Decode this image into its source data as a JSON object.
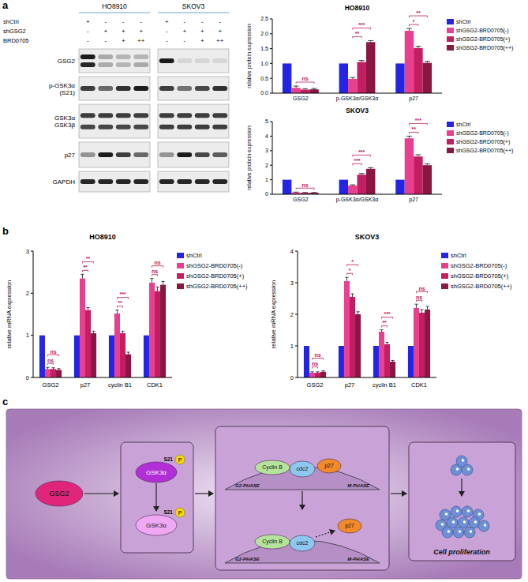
{
  "panel_labels": [
    "a",
    "b",
    "c"
  ],
  "blot_treatments": [
    {
      "label": "shCtrl",
      "marks": [
        "+",
        "-",
        "-",
        "-"
      ]
    },
    {
      "label": "shGSG2",
      "marks": [
        "-",
        "+",
        "+",
        "+"
      ]
    },
    {
      "label": "BRD0705",
      "marks": [
        "-",
        "-",
        "+",
        "++"
      ]
    }
  ],
  "blot_rows": [
    "GSG2",
    "p-GSK3α (S21)",
    "GSK3α GSK3β",
    "p27",
    "GAPDH"
  ],
  "blots": [
    {
      "title": "HO8910",
      "bands": [
        [
          [
            0.95,
            0.3,
            0.25,
            0.25
          ],
          [
            0.9,
            0.3,
            0.25,
            0.3
          ]
        ],
        [
          [
            0.8,
            0.6,
            0.85,
            0.95
          ]
        ],
        [
          [
            0.8,
            0.8,
            0.8,
            0.8
          ],
          [
            0.75,
            0.75,
            0.75,
            0.75
          ]
        ],
        [
          [
            0.4,
            0.95,
            0.8,
            0.6
          ]
        ],
        [
          [
            0.9,
            0.9,
            0.9,
            0.9
          ]
        ]
      ]
    },
    {
      "title": "SKOV3",
      "bands": [
        [
          [
            0.95,
            0.1,
            0.1,
            0.1
          ]
        ],
        [
          [
            0.8,
            0.55,
            0.75,
            0.85
          ]
        ],
        [
          [
            0.8,
            0.8,
            0.8,
            0.8
          ],
          [
            0.8,
            0.8,
            0.8,
            0.8
          ]
        ],
        [
          [
            0.4,
            0.95,
            0.75,
            0.65
          ]
        ],
        [
          [
            0.9,
            0.9,
            0.9,
            0.9
          ]
        ]
      ]
    }
  ],
  "chart_data": [
    {
      "type": "bar",
      "title": "HO8910",
      "ylabel": "relative protein expression",
      "categories": [
        "GSG2",
        "p-GSK3α/GSK3α",
        "p27"
      ],
      "series": [
        {
          "name": "shCtrl",
          "color": "#2424e6",
          "values": [
            1,
            1,
            1
          ]
        },
        {
          "name": "shGSG2-BRD0705(-)",
          "color": "#e8408f",
          "values": [
            0.18,
            0.48,
            2.1
          ],
          "errors": [
            0.06,
            0.05,
            0.08
          ]
        },
        {
          "name": "shGSG2-BRD0705(+)",
          "color": "#c41e62",
          "values": [
            0.12,
            1.05,
            1.52
          ],
          "errors": [
            0.03,
            0.05,
            0.06
          ]
        },
        {
          "name": "shGSG2-BRD0705(++)",
          "color": "#8a1644",
          "values": [
            0.13,
            1.72,
            1.02
          ],
          "errors": [
            0.03,
            0.05,
            0.05
          ]
        }
      ],
      "ylim": [
        0,
        2.5
      ],
      "yticks": [
        {
          "value": 0,
          "label": "0.0"
        },
        0.5,
        {
          "value": 1,
          "label": "1.0"
        },
        1.5,
        {
          "value": 2,
          "label": "2.0"
        },
        2.5
      ],
      "grid": false,
      "legend": "right",
      "annotations": [
        {
          "category": "GSG2",
          "from": "shGSG2-BRD0705(-)",
          "to": "shGSG2-BRD0705(++)",
          "text": "ns"
        },
        {
          "category": "p-GSK3α/GSK3α",
          "from": "shGSG2-BRD0705(-)",
          "to": "shGSG2-BRD0705(+)",
          "text": "**"
        },
        {
          "category": "p-GSK3α/GSK3α",
          "from": "shGSG2-BRD0705(-)",
          "to": "shGSG2-BRD0705(++)",
          "text": "***"
        },
        {
          "category": "p27",
          "from": "shGSG2-BRD0705(-)",
          "to": "shGSG2-BRD0705(+)",
          "text": "*"
        },
        {
          "category": "p27",
          "from": "shGSG2-BRD0705(-)",
          "to": "shGSG2-BRD0705(++)",
          "text": "**"
        }
      ]
    },
    {
      "type": "bar",
      "title": "SKOV3",
      "ylabel": "relative protein expression",
      "categories": [
        "GSG2",
        "p-GSK3α/GSK3α",
        "p27"
      ],
      "series": [
        {
          "name": "shCtrl",
          "color": "#2424e6",
          "values": [
            1,
            1,
            1
          ]
        },
        {
          "name": "shGSG2-BRD0705(-)",
          "color": "#e8408f",
          "values": [
            0.12,
            0.6,
            3.85
          ],
          "errors": [
            0.03,
            0.05,
            0.15
          ]
        },
        {
          "name": "shGSG2-BRD0705(+)",
          "color": "#c41e62",
          "values": [
            0.1,
            1.35,
            2.6
          ],
          "errors": [
            0.02,
            0.08,
            0.12
          ]
        },
        {
          "name": "shGSG2-BRD0705(++)",
          "color": "#8a1644",
          "values": [
            0.1,
            1.75,
            2.0
          ],
          "errors": [
            0.02,
            0.08,
            0.1
          ]
        }
      ],
      "ylim": [
        0,
        5
      ],
      "yticks": [
        0,
        1,
        2,
        3,
        4,
        5
      ],
      "grid": false,
      "legend": "right",
      "annotations": [
        {
          "category": "GSG2",
          "from": "shGSG2-BRD0705(-)",
          "to": "shGSG2-BRD0705(++)",
          "text": "ns"
        },
        {
          "category": "p-GSK3α/GSK3α",
          "from": "shGSG2-BRD0705(-)",
          "to": "shGSG2-BRD0705(+)",
          "text": "***"
        },
        {
          "category": "p-GSK3α/GSK3α",
          "from": "shGSG2-BRD0705(-)",
          "to": "shGSG2-BRD0705(++)",
          "text": "***"
        },
        {
          "category": "p27",
          "from": "shGSG2-BRD0705(-)",
          "to": "shGSG2-BRD0705(+)",
          "text": "**"
        },
        {
          "category": "p27",
          "from": "shGSG2-BRD0705(-)",
          "to": "shGSG2-BRD0705(++)",
          "text": "***"
        }
      ]
    },
    {
      "type": "bar",
      "title": "HO8910",
      "ylabel": "relative mRNA expression",
      "categories": [
        "GSG2",
        "p27",
        "cyclin B1",
        "CDK1"
      ],
      "series": [
        {
          "name": "shCtrl",
          "color": "#2424e6",
          "values": [
            1,
            1,
            1,
            1
          ]
        },
        {
          "name": "shGSG2-BRD0705(-)",
          "color": "#e8408f",
          "values": [
            0.2,
            2.35,
            1.52,
            2.25
          ],
          "errors": [
            0.04,
            0.1,
            0.08,
            0.1
          ]
        },
        {
          "name": "shGSG2-BRD0705(+)",
          "color": "#c41e62",
          "values": [
            0.2,
            1.6,
            1.05,
            2.05
          ],
          "errors": [
            0.03,
            0.06,
            0.05,
            0.1
          ]
        },
        {
          "name": "shGSG2-BRD0705(++)",
          "color": "#8a1644",
          "values": [
            0.18,
            1.05,
            0.55,
            2.2
          ],
          "errors": [
            0.03,
            0.05,
            0.05,
            0.08
          ]
        }
      ],
      "ylim": [
        0,
        3
      ],
      "yticks": [
        0,
        1,
        2,
        3
      ],
      "grid": false,
      "legend": "right",
      "annotations": [
        {
          "category": "GSG2",
          "from": "shGSG2-BRD0705(-)",
          "to": "shGSG2-BRD0705(+)",
          "text": "ns"
        },
        {
          "category": "GSG2",
          "from": "shGSG2-BRD0705(-)",
          "to": "shGSG2-BRD0705(++)",
          "text": "ns"
        },
        {
          "category": "p27",
          "from": "shGSG2-BRD0705(-)",
          "to": "shGSG2-BRD0705(+)",
          "text": "**"
        },
        {
          "category": "p27",
          "from": "shGSG2-BRD0705(-)",
          "to": "shGSG2-BRD0705(++)",
          "text": "**"
        },
        {
          "category": "cyclin B1",
          "from": "shGSG2-BRD0705(-)",
          "to": "shGSG2-BRD0705(+)",
          "text": "**"
        },
        {
          "category": "cyclin B1",
          "from": "shGSG2-BRD0705(-)",
          "to": "shGSG2-BRD0705(++)",
          "text": "***"
        },
        {
          "category": "CDK1",
          "from": "shGSG2-BRD0705(-)",
          "to": "shGSG2-BRD0705(+)",
          "text": "ns"
        },
        {
          "category": "CDK1",
          "from": "shGSG2-BRD0705(-)",
          "to": "shGSG2-BRD0705(++)",
          "text": "ns"
        }
      ]
    },
    {
      "type": "bar",
      "title": "SKOV3",
      "ylabel": "relative mRNA expression",
      "categories": [
        "GSG2",
        "p27",
        "cyclin B1",
        "CDK1"
      ],
      "series": [
        {
          "name": "shCtrl",
          "color": "#2424e6",
          "values": [
            1,
            1,
            1,
            1
          ]
        },
        {
          "name": "shGSG2-BRD0705(-)",
          "color": "#e8408f",
          "values": [
            0.15,
            3.05,
            1.45,
            2.2
          ],
          "errors": [
            0.03,
            0.12,
            0.06,
            0.12
          ]
        },
        {
          "name": "shGSG2-BRD0705(+)",
          "color": "#c41e62",
          "values": [
            0.15,
            2.55,
            1.05,
            2.05
          ],
          "errors": [
            0.03,
            0.1,
            0.06,
            0.1
          ]
        },
        {
          "name": "shGSG2-BRD0705(++)",
          "color": "#8a1644",
          "values": [
            0.18,
            2.0,
            0.5,
            2.15
          ],
          "errors": [
            0.03,
            0.08,
            0.04,
            0.1
          ]
        }
      ],
      "ylim": [
        0,
        4
      ],
      "yticks": [
        0,
        1,
        2,
        3,
        4
      ],
      "grid": false,
      "legend": "right",
      "annotations": [
        {
          "category": "GSG2",
          "from": "shGSG2-BRD0705(-)",
          "to": "shGSG2-BRD0705(+)",
          "text": "ns"
        },
        {
          "category": "GSG2",
          "from": "shGSG2-BRD0705(-)",
          "to": "shGSG2-BRD0705(++)",
          "text": "ns"
        },
        {
          "category": "p27",
          "from": "shGSG2-BRD0705(-)",
          "to": "shGSG2-BRD0705(+)",
          "text": "*"
        },
        {
          "category": "p27",
          "from": "shGSG2-BRD0705(-)",
          "to": "shGSG2-BRD0705(++)",
          "text": "*"
        },
        {
          "category": "cyclin B1",
          "from": "shGSG2-BRD0705(-)",
          "to": "shGSG2-BRD0705(+)",
          "text": "**"
        },
        {
          "category": "cyclin B1",
          "from": "shGSG2-BRD0705(-)",
          "to": "shGSG2-BRD0705(++)",
          "text": "***"
        },
        {
          "category": "CDK1",
          "from": "shGSG2-BRD0705(-)",
          "to": "shGSG2-BRD0705(+)",
          "text": "ns"
        },
        {
          "category": "CDK1",
          "from": "shGSG2-BRD0705(-)",
          "to": "shGSG2-BRD0705(++)",
          "text": "ns"
        }
      ]
    }
  ],
  "diagram": {
    "source": "GSG2",
    "kinase": "GSK3α",
    "site": "S21",
    "phospho": "P",
    "phase_start": "G2-PHASE",
    "phase_end": "M-PHASE",
    "complex": [
      "Cyclin B",
      "cdc2",
      "p27"
    ],
    "outcome": "Cell proliferation"
  }
}
